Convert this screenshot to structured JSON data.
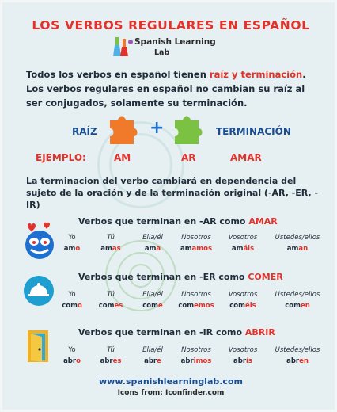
{
  "title": "LOS VERBOS REGULARES EN ESPAÑOL",
  "logo": {
    "line1": "Spanish Learning",
    "line2": "Lab"
  },
  "intro": {
    "part1": "Todos los verbos en español tienen ",
    "highlight": "raíz y terminación",
    "part2": ". Los verbos regulares en español no cambian su raíz al ser conjugados, solamente su terminación."
  },
  "formula": {
    "raiz": "RAÍZ",
    "plus": "+",
    "terminacion": "TERMINACIÓN",
    "ejemplo_label": "EJEMPLO:",
    "ejemplo_root": "AM",
    "ejemplo_ending": "AR",
    "ejemplo_result": "AMAR"
  },
  "description": "La terminacion del verbo cambiará en dependencia del sujeto de la oración y de la terminación original (-AR, -ER, -IR)",
  "sections": [
    {
      "title": "Verbos que terminan en -AR como ",
      "verb": "AMAR",
      "pronouns": [
        "Yo",
        "Tú",
        "Ella/él",
        "Nosotros",
        "Vosotros",
        "Ustedes/ellos"
      ],
      "forms": [
        {
          "root": "am",
          "end": "o"
        },
        {
          "root": "am",
          "end": "as"
        },
        {
          "root": "am",
          "end": "a"
        },
        {
          "root": "am",
          "end": "amos"
        },
        {
          "root": "am",
          "end": "áis"
        },
        {
          "root": "am",
          "end": "an"
        }
      ]
    },
    {
      "title": "Verbos que terminan en -ER como ",
      "verb": "COMER",
      "pronouns": [
        "Yo",
        "Tú",
        "Ella/él",
        "Nosotros",
        "Vosotros",
        "Ustedes/ellos"
      ],
      "forms": [
        {
          "root": "com",
          "end": "o"
        },
        {
          "root": "com",
          "end": "es"
        },
        {
          "root": "com",
          "end": "e"
        },
        {
          "root": "com",
          "end": "emos"
        },
        {
          "root": "com",
          "end": "éis"
        },
        {
          "root": "com",
          "end": "en"
        }
      ]
    },
    {
      "title": "Verbos que terminan en -IR como ",
      "verb": "ABRIR",
      "pronouns": [
        "Yo",
        "Tú",
        "Ella/él",
        "Nosotros",
        "Vosotros",
        "Ustedes/ellos"
      ],
      "forms": [
        {
          "root": "abr",
          "end": "o"
        },
        {
          "root": "abr",
          "end": "es"
        },
        {
          "root": "abr",
          "end": "e"
        },
        {
          "root": "abr",
          "end": "imos"
        },
        {
          "root": "abr",
          "end": "ís"
        },
        {
          "root": "abr",
          "end": "en"
        }
      ]
    }
  ],
  "footer": {
    "url": "www.spanishlearninglab.com",
    "icons_credit": "Icons from: Iconfinder.com"
  },
  "colors": {
    "accent_red": "#e3322b",
    "accent_blue": "#1a4d8f",
    "puzzle_orange": "#f07a2a",
    "puzzle_green": "#7cc242"
  },
  "icons": [
    "flask-logo-icon",
    "orange-puzzle-icon",
    "green-puzzle-icon",
    "heart-eyes-face-icon",
    "food-tray-icon",
    "open-door-icon"
  ]
}
